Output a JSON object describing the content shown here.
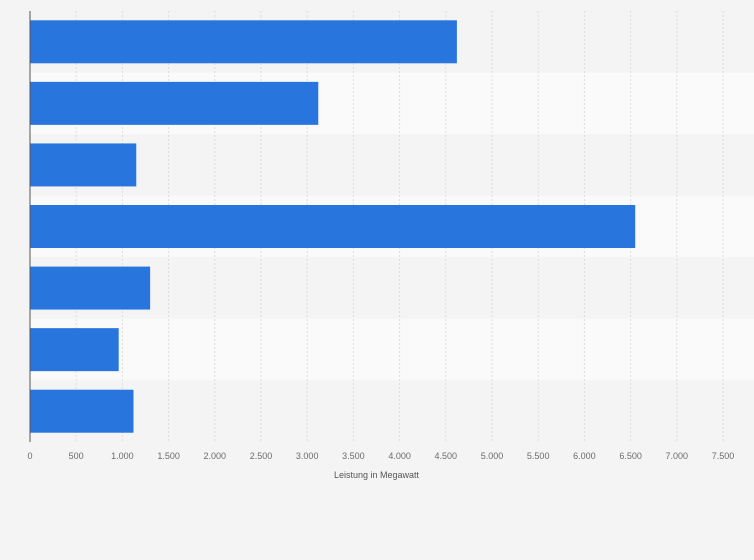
{
  "chart_data": {
    "type": "bar",
    "orientation": "horizontal",
    "title": "",
    "categories": [
      "",
      "",
      "",
      "",
      "",
      "",
      ""
    ],
    "values": [
      4620,
      3120,
      1150,
      6550,
      1300,
      960,
      1120
    ],
    "xlabel": "Leistung in Megawatt",
    "ylabel": "",
    "xlim": [
      0,
      7500
    ],
    "x_ticks": [
      0,
      500,
      1000,
      1500,
      2000,
      2500,
      3000,
      3500,
      4000,
      4500,
      5000,
      5500,
      6000,
      6500,
      7000,
      7500
    ],
    "x_tick_labels": [
      "0",
      "500",
      "1.000",
      "1.500",
      "2.000",
      "2.500",
      "3.000",
      "3.500",
      "4.000",
      "4.500",
      "5.000",
      "5.500",
      "6.000",
      "6.500",
      "7.000",
      "7.500"
    ],
    "grid": true,
    "bar_color": "#2876dd",
    "band_colors": [
      "#f4f4f4",
      "#fafafa"
    ]
  }
}
